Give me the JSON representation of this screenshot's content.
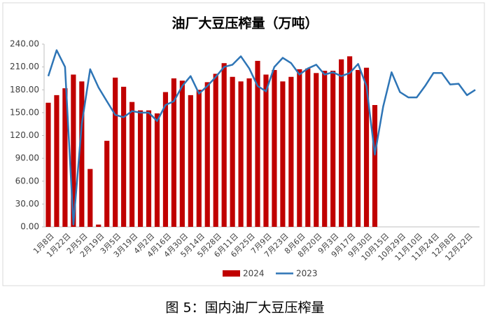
{
  "chart_data": {
    "type": "bar-line",
    "title": "油厂大豆压榨量（万吨）",
    "caption": "图 5：国内油厂大豆压榨量",
    "categories": [
      "1月8日",
      null,
      "1月22日",
      null,
      "2月5日",
      null,
      "2月19日",
      null,
      "3月5日",
      null,
      "3月19日",
      null,
      "4月2日",
      null,
      "4月16日",
      null,
      "4月30日",
      null,
      "5月14日",
      null,
      "5月28日",
      null,
      "6月11日",
      null,
      "6月25日",
      null,
      "7月9日",
      null,
      "7月23日",
      null,
      "8月6日",
      null,
      "8月20日",
      null,
      "9月3日",
      null,
      "9月17日",
      null,
      "9月30日",
      null,
      "10月15日",
      null,
      "10月29日",
      null,
      "11月10日",
      null,
      "11月24日",
      null,
      "12月8日",
      null,
      "12月22日",
      null
    ],
    "series": [
      {
        "name": "2024",
        "kind": "bar",
        "color": "#c00000",
        "values": [
          163,
          173,
          182,
          200,
          191,
          76,
          3,
          113,
          196,
          184,
          164,
          153,
          153,
          149,
          177,
          195,
          192,
          173,
          180,
          190,
          201,
          215,
          197,
          191,
          195,
          218,
          200,
          206,
          191,
          197,
          207,
          208,
          202,
          205,
          205,
          220,
          224,
          206,
          209,
          160,
          null,
          null,
          null,
          null,
          null,
          null,
          null,
          null,
          null,
          null,
          null,
          null
        ]
      },
      {
        "name": "2023",
        "kind": "line",
        "color": "#2e75b6",
        "values": [
          198,
          232,
          210,
          3,
          135,
          207,
          183,
          165,
          147,
          144,
          152,
          150,
          150,
          139,
          160,
          165,
          185,
          198,
          175,
          185,
          197,
          210,
          213,
          224,
          208,
          185,
          178,
          210,
          222,
          215,
          200,
          208,
          213,
          200,
          203,
          198,
          202,
          214,
          185,
          95,
          158,
          203,
          177,
          170,
          170,
          185,
          202,
          202,
          187,
          188,
          173,
          180
        ]
      }
    ],
    "ylim": [
      0,
      240
    ],
    "yticks": [
      {
        "value": 0,
        "label": "0.00"
      },
      {
        "value": 30,
        "label": "30.00"
      },
      {
        "value": 60,
        "label": "60.00"
      },
      {
        "value": 90,
        "label": "90.00"
      },
      {
        "value": 120,
        "label": "120.00"
      },
      {
        "value": 150,
        "label": "150.00"
      },
      {
        "value": 180,
        "label": "180.00"
      },
      {
        "value": 210,
        "label": "210.00"
      },
      {
        "value": 240,
        "label": "240.00"
      }
    ],
    "legend": "bottom"
  }
}
